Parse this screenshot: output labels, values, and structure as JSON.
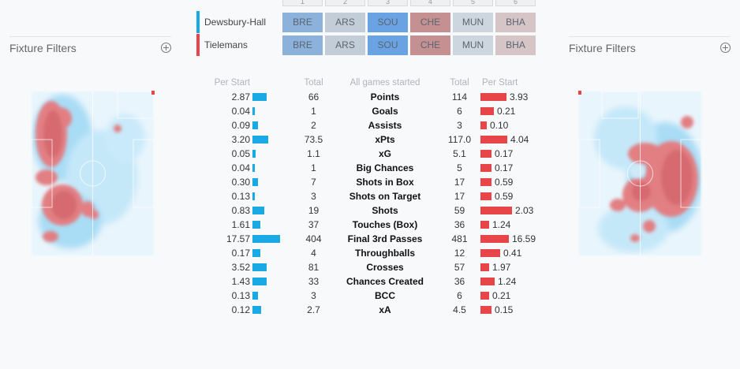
{
  "colors": {
    "home": "#19a9e3",
    "away": "#e84548"
  },
  "gameweeks": [
    "1",
    "2",
    "3",
    "4",
    "5",
    "6"
  ],
  "players": [
    {
      "name": "Dewsbury-Hall",
      "color": "#19a9e3",
      "fixtures": [
        {
          "team": "BRE",
          "bg": "#8cb1db"
        },
        {
          "team": "ARS",
          "bg": "#c3cdd7"
        },
        {
          "team": "SOU",
          "bg": "#6aa3e3"
        },
        {
          "team": "CHE",
          "bg": "#c49092"
        },
        {
          "team": "MUN",
          "bg": "#cdd5de"
        },
        {
          "team": "BHA",
          "bg": "#d6c5c7"
        }
      ]
    },
    {
      "name": "Tielemans",
      "color": "#e84548",
      "fixtures": [
        {
          "team": "BRE",
          "bg": "#8cb1db"
        },
        {
          "team": "ARS",
          "bg": "#c3cdd7"
        },
        {
          "team": "SOU",
          "bg": "#6aa3e3"
        },
        {
          "team": "CHE",
          "bg": "#c49092"
        },
        {
          "team": "MUN",
          "bg": "#cdd5de"
        },
        {
          "team": "BHA",
          "bg": "#d6c5c7"
        }
      ]
    }
  ],
  "filters": {
    "left_label": "Fixture Filters",
    "right_label": "Fixture Filters"
  },
  "table": {
    "headers": {
      "per_start_left": "Per Start",
      "total_left": "Total",
      "label": "All games started",
      "total_right": "Total",
      "per_start_right": "Per Start"
    },
    "rows": [
      {
        "label": "Points",
        "lps": "2.87",
        "lfrac": 0.36,
        "ltot": "66",
        "rtot": "114",
        "rps": "3.93",
        "rfrac": 0.6
      },
      {
        "label": "Goals",
        "lps": "0.04",
        "lfrac": 0.06,
        "ltot": "1",
        "rtot": "6",
        "rps": "0.21",
        "rfrac": 0.3
      },
      {
        "label": "Assists",
        "lps": "0.09",
        "lfrac": 0.13,
        "ltot": "2",
        "rtot": "3",
        "rps": "0.10",
        "rfrac": 0.15
      },
      {
        "label": "xPts",
        "lps": "3.20",
        "lfrac": 0.4,
        "ltot": "73.5",
        "rtot": "117.0",
        "rps": "4.04",
        "rfrac": 0.61
      },
      {
        "label": "xG",
        "lps": "0.05",
        "lfrac": 0.07,
        "ltot": "1.1",
        "rtot": "5.1",
        "rps": "0.17",
        "rfrac": 0.26
      },
      {
        "label": "Big Chances",
        "lps": "0.04",
        "lfrac": 0.06,
        "ltot": "1",
        "rtot": "5",
        "rps": "0.17",
        "rfrac": 0.26
      },
      {
        "label": "Shots in Box",
        "lps": "0.30",
        "lfrac": 0.13,
        "ltot": "7",
        "rtot": "17",
        "rps": "0.59",
        "rfrac": 0.26
      },
      {
        "label": "Shots on Target",
        "lps": "0.13",
        "lfrac": 0.06,
        "ltot": "3",
        "rtot": "17",
        "rps": "0.59",
        "rfrac": 0.26
      },
      {
        "label": "Shots",
        "lps": "0.83",
        "lfrac": 0.3,
        "ltot": "19",
        "rtot": "59",
        "rps": "2.03",
        "rfrac": 0.73
      },
      {
        "label": "Touches (Box)",
        "lps": "1.61",
        "lfrac": 0.2,
        "ltot": "37",
        "rtot": "36",
        "rps": "1.24",
        "rfrac": 0.2
      },
      {
        "label": "Final 3rd Passes",
        "lps": "17.57",
        "lfrac": 0.7,
        "ltot": "404",
        "rtot": "481",
        "rps": "16.59",
        "rfrac": 0.66
      },
      {
        "label": "Throughballs",
        "lps": "0.17",
        "lfrac": 0.2,
        "ltot": "4",
        "rtot": "12",
        "rps": "0.41",
        "rfrac": 0.46
      },
      {
        "label": "Crosses",
        "lps": "3.52",
        "lfrac": 0.36,
        "ltot": "81",
        "rtot": "57",
        "rps": "1.97",
        "rfrac": 0.2
      },
      {
        "label": "Chances Created",
        "lps": "1.43",
        "lfrac": 0.36,
        "ltot": "33",
        "rtot": "36",
        "rps": "1.24",
        "rfrac": 0.33
      },
      {
        "label": "BCC",
        "lps": "0.13",
        "lfrac": 0.13,
        "ltot": "3",
        "rtot": "6",
        "rps": "0.21",
        "rfrac": 0.2
      },
      {
        "label": "xA",
        "lps": "0.12",
        "lfrac": 0.21,
        "ltot": "2.7",
        "rtot": "4.5",
        "rps": "0.15",
        "rfrac": 0.26
      }
    ]
  }
}
